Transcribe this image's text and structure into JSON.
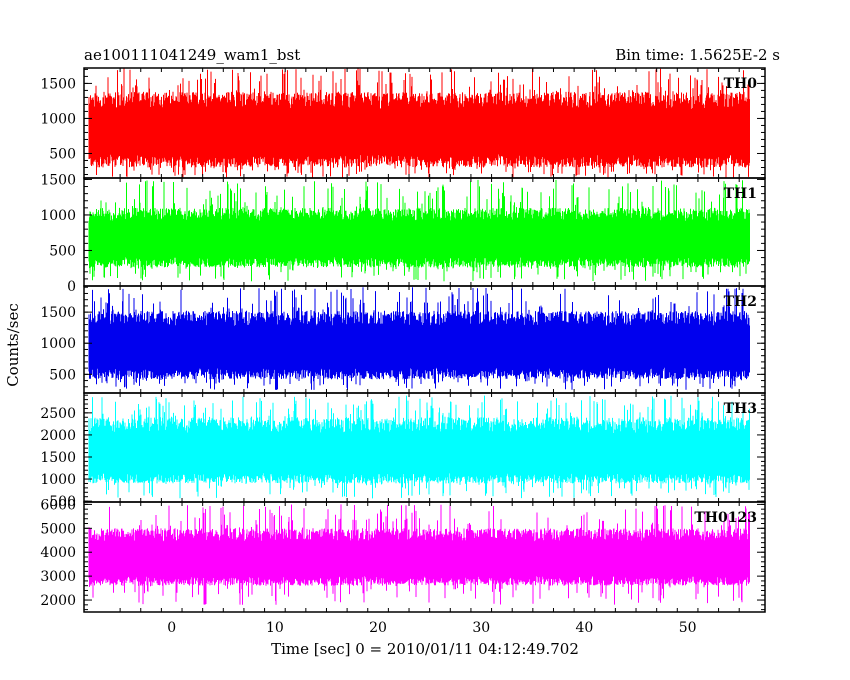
{
  "chart_data": {
    "type": "line",
    "title": "ae100111041249_wam1_bst",
    "subtitle": "Bin time: 1.5625E-2 s",
    "xlabel": "Time [sec] 0 = 2010/01/11 04:12:49.702",
    "ylabel": "Counts/sec",
    "xlim": [
      -8.5,
      57.5
    ],
    "x_range_data": [
      -8,
      56
    ],
    "x_ticks": [
      0,
      10,
      20,
      30,
      40,
      50
    ],
    "x_tick_labels": [
      "0",
      "10",
      "20",
      "30",
      "40",
      "50"
    ],
    "grid": false,
    "panels": [
      {
        "name": "TH0",
        "color": "#ff0000",
        "ylim": [
          150,
          1720
        ],
        "y_ticks": [
          500,
          1000,
          1500
        ],
        "y_tick_labels": [
          "500",
          "1000",
          "1500"
        ],
        "mean": 830,
        "typical_low": 300,
        "typical_high": 1380,
        "spike_low": 150,
        "spike_high": 1720
      },
      {
        "name": "TH1",
        "color": "#00ff00",
        "ylim": [
          0,
          1520
        ],
        "y_ticks": [
          0,
          500,
          1000,
          1500
        ],
        "y_tick_labels": [
          "0",
          "500",
          "1000",
          "1500"
        ],
        "mean": 680,
        "typical_low": 260,
        "typical_high": 1100,
        "spike_low": 60,
        "spike_high": 1500
      },
      {
        "name": "TH2",
        "color": "#0000ee",
        "ylim": [
          200,
          1920
        ],
        "y_ticks": [
          500,
          1000,
          1500
        ],
        "y_tick_labels": [
          "500",
          "1000",
          "1500"
        ],
        "mean": 960,
        "typical_low": 420,
        "typical_high": 1520,
        "spike_low": 250,
        "spike_high": 1900
      },
      {
        "name": "TH3",
        "color": "#00ffff",
        "ylim": [
          480,
          2950
        ],
        "y_ticks": [
          500,
          1000,
          1500,
          2000,
          2500
        ],
        "y_tick_labels": [
          "500",
          "1000",
          "1500",
          "2000",
          "2500"
        ],
        "mean": 1580,
        "typical_low": 900,
        "typical_high": 2400,
        "spike_low": 550,
        "spike_high": 2900
      },
      {
        "name": "TH0123",
        "color": "#ff00ff",
        "ylim": [
          1500,
          6100
        ],
        "y_ticks": [
          2000,
          3000,
          4000,
          5000,
          6000
        ],
        "y_tick_labels": [
          "2000",
          "3000",
          "4000",
          "5000",
          "6000"
        ],
        "mean": 3750,
        "typical_low": 2600,
        "typical_high": 5000,
        "spike_low": 1800,
        "spike_high": 6000
      }
    ]
  }
}
